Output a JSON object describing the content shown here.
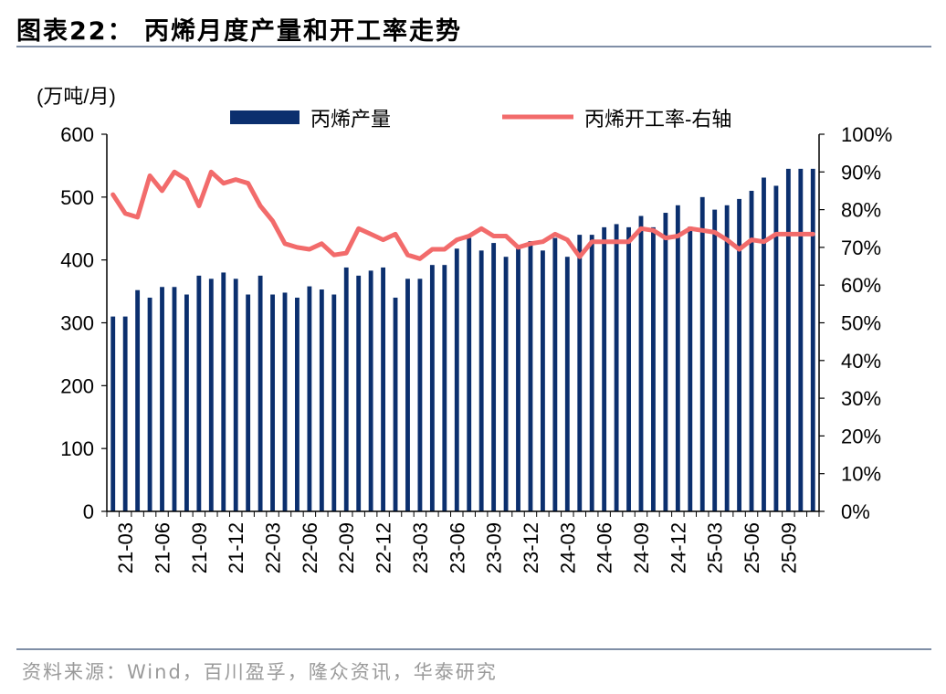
{
  "figure": {
    "title": "图表22：  丙烯月度产量和开工率走势",
    "source": "资料来源：Wind，百川盈孚，隆众资讯，华泰研究"
  },
  "colors": {
    "bar": "#0b2f6e",
    "line": "#f26b6b",
    "axis": "#000000",
    "rule": "#7f8ea6"
  },
  "chart_data": {
    "type": "bar",
    "secondary_type": "line",
    "unit_label": "(万吨/月)",
    "categories": [
      "21-02",
      "21-03",
      "21-04",
      "21-05",
      "21-06",
      "21-07",
      "21-08",
      "21-09",
      "21-10",
      "21-11",
      "21-12",
      "22-01",
      "22-02",
      "22-03",
      "22-04",
      "22-05",
      "22-06",
      "22-07",
      "22-08",
      "22-09",
      "22-10",
      "22-11",
      "22-12",
      "23-01",
      "23-02",
      "23-03",
      "23-04",
      "23-05",
      "23-06",
      "23-07",
      "23-08",
      "23-09",
      "23-10",
      "23-11",
      "23-12",
      "24-01",
      "24-02",
      "24-03",
      "24-04",
      "24-05",
      "24-06",
      "24-07",
      "24-08",
      "24-09",
      "24-10",
      "24-11",
      "24-12",
      "25-01",
      "25-02",
      "25-03",
      "25-04",
      "25-05",
      "25-06",
      "25-07",
      "25-08",
      "25-09",
      "25-10",
      "25-11"
    ],
    "tick_labels": [
      "21-03",
      "21-06",
      "21-09",
      "21-12",
      "22-03",
      "22-06",
      "22-09",
      "22-12",
      "23-03",
      "23-06",
      "23-09",
      "23-12",
      "24-03",
      "24-06",
      "24-09",
      "24-12",
      "25-03",
      "25-06",
      "25-09"
    ],
    "series": [
      {
        "name": "丙烯产量",
        "axis": "left",
        "type": "bar",
        "values": [
          310,
          310,
          352,
          340,
          357,
          357,
          345,
          375,
          370,
          380,
          370,
          345,
          375,
          345,
          348,
          340,
          358,
          353,
          345,
          388,
          375,
          383,
          388,
          340,
          370,
          370,
          392,
          392,
          418,
          435,
          415,
          427,
          405,
          418,
          430,
          415,
          435,
          405,
          440,
          440,
          452,
          457,
          452,
          470,
          452,
          475,
          487,
          453,
          500,
          480,
          487,
          497,
          510,
          531,
          518,
          545,
          545,
          545
        ]
      },
      {
        "name": "丙烯开工率-右轴",
        "axis": "right",
        "type": "line",
        "values": [
          84,
          79,
          78,
          89,
          85,
          90,
          88,
          81,
          90,
          87,
          88,
          87,
          81,
          77,
          71,
          70,
          69.5,
          71,
          68,
          68.5,
          75,
          73.5,
          72,
          73.5,
          68,
          67,
          69.5,
          69.5,
          72,
          73,
          75,
          73,
          73,
          70,
          71,
          71.5,
          73.5,
          72,
          67.5,
          71.5,
          71.5,
          71.5,
          71.5,
          75,
          74.5,
          72.5,
          73,
          75,
          74.5,
          74,
          72,
          69.5,
          72,
          71.5,
          73.5,
          73.5,
          73.5,
          73.5
        ]
      }
    ],
    "y_left": {
      "ylim": [
        0,
        600
      ],
      "ticks": [
        "0",
        "100",
        "200",
        "300",
        "400",
        "500",
        "600"
      ]
    },
    "y_right": {
      "ylim": [
        0,
        100
      ],
      "ticks": [
        "0%",
        "10%",
        "20%",
        "30%",
        "40%",
        "50%",
        "60%",
        "70%",
        "80%",
        "90%",
        "100%"
      ]
    },
    "legend_position": "top",
    "grid": false
  }
}
